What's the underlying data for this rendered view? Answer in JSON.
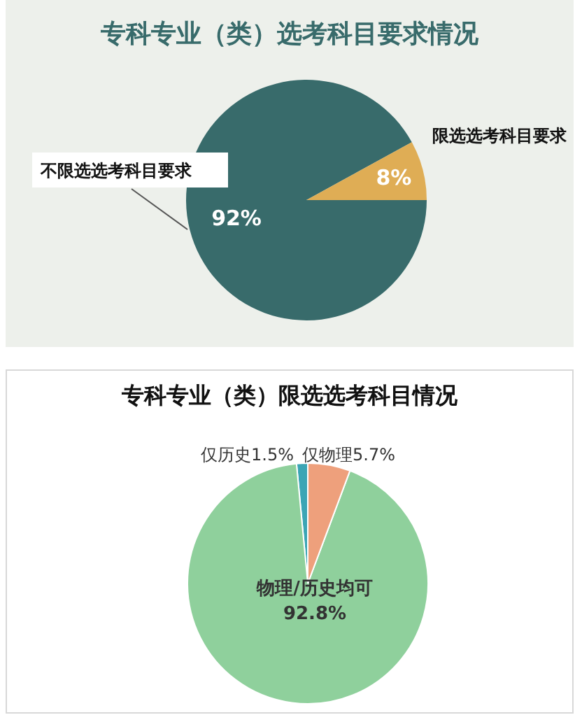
{
  "chart_data": [
    {
      "type": "pie",
      "title": "专科专业（类）选考科目要求情况",
      "categories": [
        "不限选选考科目要求",
        "限选选考科目要求"
      ],
      "values": [
        92,
        8
      ],
      "colors": [
        "#386b6b",
        "#dfad55"
      ],
      "value_labels": [
        "92%",
        "8%"
      ]
    },
    {
      "type": "pie",
      "title": "专科专业（类）限选选考科目情况",
      "categories": [
        "仅历史",
        "物理/历史均可",
        "仅物理"
      ],
      "values": [
        1.5,
        92.8,
        5.7
      ],
      "colors": [
        "#3ba5b5",
        "#8fd09c",
        "#eea07c"
      ],
      "value_labels": [
        "1.5%",
        "92.8%",
        "5.7%"
      ]
    }
  ]
}
